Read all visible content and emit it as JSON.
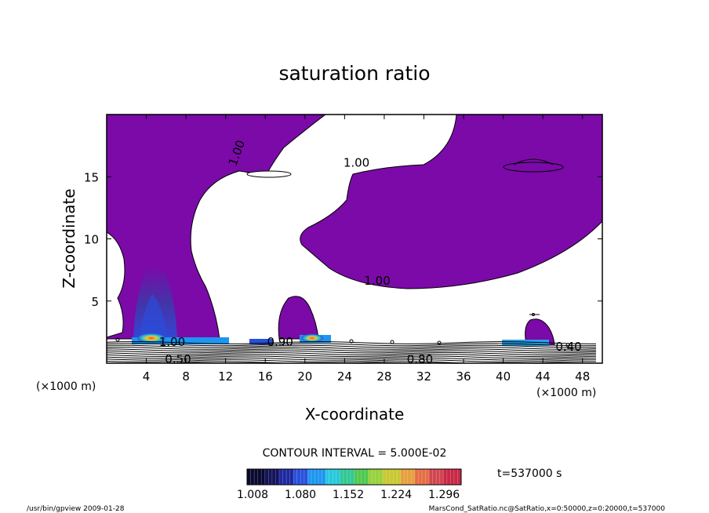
{
  "chart_data": {
    "type": "contour",
    "title": "saturation ratio",
    "xlabel": "X-coordinate",
    "ylabel": "Z-coordinate",
    "x_unit": "(×1000 m)",
    "x_unit_right": "(×1000 m)",
    "y_unit": "(×1000 m)",
    "xlim": [
      0,
      50
    ],
    "ylim": [
      0,
      20
    ],
    "xticks": [
      4,
      8,
      12,
      16,
      20,
      24,
      28,
      32,
      36,
      40,
      44,
      48
    ],
    "yticks": [
      5,
      10,
      15
    ],
    "contour_interval_text": "CONTOUR INTERVAL = 5.000E-02",
    "time_text": "t=537000 s",
    "colorbar": {
      "min": 1.008,
      "max": 1.33,
      "tick_values": [
        1.008,
        1.08,
        1.152,
        1.224,
        1.296
      ],
      "tick_labels": [
        "1.008",
        "1.080",
        "1.152",
        "1.224",
        "1.296"
      ],
      "colors": [
        "#0a0a30",
        "#14145a",
        "#1e28a0",
        "#2850dc",
        "#1e96f0",
        "#28c8dc",
        "#32c896",
        "#50c850",
        "#96d23c",
        "#c8c832",
        "#e6a03c",
        "#e66e46",
        "#d24650",
        "#c82846"
      ]
    },
    "fill_color": "#7b0aa8",
    "contour_labels": [
      {
        "text": "1.00",
        "x": 13.5,
        "y": 16.8,
        "angle": -70
      },
      {
        "text": "1.00",
        "x": 25.2,
        "y": 15.8,
        "angle": 0
      },
      {
        "text": "1.00",
        "x": 27.3,
        "y": 6.3,
        "angle": 0
      },
      {
        "text": "1.00",
        "x": 6.6,
        "y": 1.4,
        "angle": 0
      },
      {
        "text": "0.90",
        "x": 17.5,
        "y": 1.4,
        "angle": 0
      },
      {
        "text": "0.50",
        "x": 7.2,
        "y": 0.0,
        "angle": 0
      },
      {
        "text": "0.80",
        "x": 31.6,
        "y": 0.0,
        "angle": 0
      },
      {
        "text": "0.40",
        "x": 46.6,
        "y": 1.0,
        "angle": 0
      }
    ],
    "moist_regions": [
      {
        "name": "left plume",
        "x_range": [
          3.5,
          12.5
        ],
        "z_top": 20,
        "max_value": 1.3,
        "max_x": 4.5,
        "max_z": 2.0
      },
      {
        "name": "upper arc",
        "x_range": [
          24.0,
          50.0
        ],
        "z_top": 20,
        "max_value": 1.0
      },
      {
        "name": "central bubble",
        "x_range": [
          17.5,
          21.8
        ],
        "z_top": 5.5,
        "max_value": 1.3,
        "max_x": 20.3,
        "max_z": 1.9
      },
      {
        "name": "right bubble",
        "x_range": [
          39.8,
          45.0
        ],
        "z_top": 3.5,
        "max_value": 1.11
      }
    ]
  },
  "footer": {
    "left": "/usr/bin/gpview   2009-01-28",
    "right": "MarsCond_SatRatio.nc@SatRatio,x=0:50000,z=0:20000,t=537000"
  }
}
